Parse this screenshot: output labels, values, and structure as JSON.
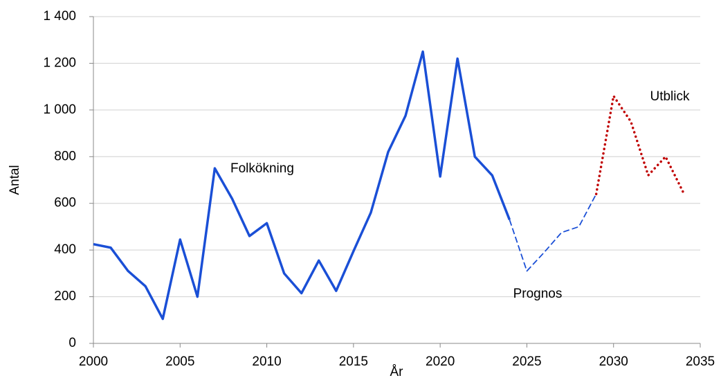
{
  "chart_data": {
    "type": "line",
    "x_label": "År",
    "y_label": "Antal",
    "annotations": [
      "Folkökning",
      "Prognos",
      "Utblick"
    ],
    "series": [
      {
        "color": "#1a4fd6",
        "style": "solid",
        "x": [
          2000,
          2001,
          2002,
          2003,
          2004,
          2005,
          2006,
          2007,
          2008,
          2009,
          2010,
          2011,
          2012,
          2013,
          2014,
          2015,
          2016,
          2017,
          2018,
          2019,
          2020,
          2021,
          2022,
          2023,
          2024
        ],
        "values": [
          425,
          410,
          310,
          245,
          105,
          445,
          200,
          750,
          620,
          460,
          515,
          300,
          215,
          355,
          225,
          395,
          560,
          820,
          975,
          1250,
          715,
          1220,
          800,
          720,
          530
        ]
      },
      {
        "color": "#1a4fd6",
        "style": "dashed",
        "x": [
          2024,
          2025,
          2026,
          2027,
          2028,
          2029
        ],
        "values": [
          530,
          310,
          390,
          475,
          500,
          640
        ]
      },
      {
        "color": "#c00000",
        "style": "dotted",
        "x": [
          2029,
          2030,
          2031,
          2032,
          2033,
          2034
        ],
        "values": [
          640,
          1060,
          950,
          720,
          800,
          650
        ]
      }
    ],
    "xlim": [
      2000,
      2035
    ],
    "xticks": [
      2000,
      2005,
      2010,
      2015,
      2020,
      2025,
      2030,
      2035
    ],
    "ylim": [
      0,
      1400
    ],
    "yticks": [
      0,
      200,
      400,
      600,
      800,
      {
        "value": 1000,
        "label": "1 000"
      },
      {
        "value": 1200,
        "label": "1 200"
      },
      {
        "value": 1400,
        "label": "1 400"
      }
    ],
    "grid": true
  }
}
